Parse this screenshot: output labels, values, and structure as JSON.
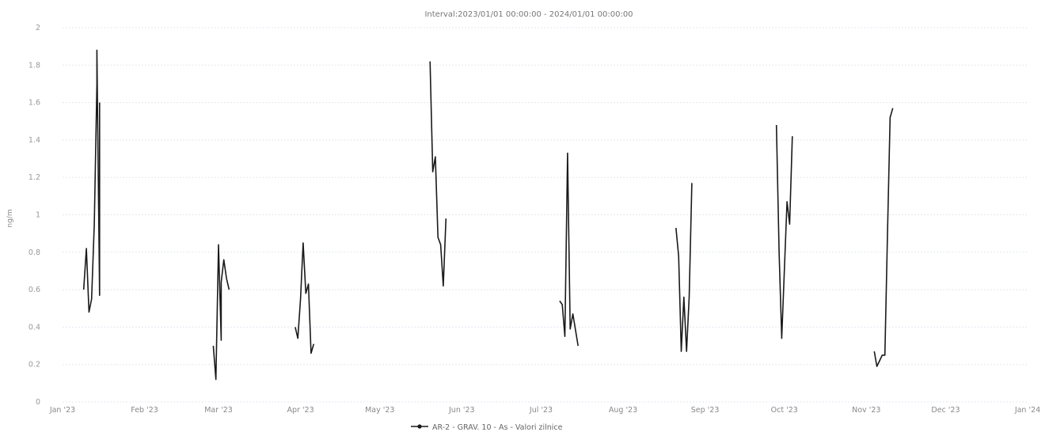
{
  "chart_data": {
    "type": "line",
    "title": "Interval:2023/01/01 00:00:00 - 2024/01/01 00:00:00",
    "ylabel": "ng/m",
    "xlabel": "",
    "ylim": [
      0,
      2
    ],
    "yticks": [
      {
        "value": 0,
        "label": "0"
      },
      {
        "value": 0.2,
        "label": "0.2"
      },
      {
        "value": 0.4,
        "label": "0.4"
      },
      {
        "value": 0.6,
        "label": "0.6"
      },
      {
        "value": 0.8,
        "label": "0.8"
      },
      {
        "value": 1.0,
        "label": "1"
      },
      {
        "value": 1.2,
        "label": "1.2"
      },
      {
        "value": 1.4,
        "label": "1.4"
      },
      {
        "value": 1.6,
        "label": "1.6"
      },
      {
        "value": 1.8,
        "label": "1.8"
      },
      {
        "value": 2.0,
        "label": "2"
      }
    ],
    "xlim": [
      "2023-01-01",
      "2024-01-01"
    ],
    "xticks": [
      {
        "date": "2023-01-01",
        "label": "Jan '23"
      },
      {
        "date": "2023-02-01",
        "label": "Feb '23"
      },
      {
        "date": "2023-03-01",
        "label": "Mar '23"
      },
      {
        "date": "2023-04-01",
        "label": "Apr '23"
      },
      {
        "date": "2023-05-01",
        "label": "May '23"
      },
      {
        "date": "2023-06-01",
        "label": "Jun '23"
      },
      {
        "date": "2023-07-01",
        "label": "Jul '23"
      },
      {
        "date": "2023-08-01",
        "label": "Aug '23"
      },
      {
        "date": "2023-09-01",
        "label": "Sep '23"
      },
      {
        "date": "2023-10-01",
        "label": "Oct '23"
      },
      {
        "date": "2023-11-01",
        "label": "Nov '23"
      },
      {
        "date": "2023-12-01",
        "label": "Dec '23"
      },
      {
        "date": "2024-01-01",
        "label": "Jan '24"
      }
    ],
    "grid": true,
    "legend_position": "bottom-center",
    "series": [
      {
        "name": "AR-2 - GRAV. 10 - As - Valori zilnice",
        "color": "#1a1a1a",
        "segments": [
          [
            {
              "x": "2023-01-09",
              "y": 0.6
            },
            {
              "x": "2023-01-10",
              "y": 0.82
            },
            {
              "x": "2023-01-11",
              "y": 0.48
            },
            {
              "x": "2023-01-12",
              "y": 0.55
            },
            {
              "x": "2023-01-13",
              "y": 0.95
            },
            {
              "x": "2023-01-14",
              "y": 1.7
            },
            {
              "x": "2023-01-14",
              "y": 1.88
            },
            {
              "x": "2023-01-15",
              "y": 0.57
            },
            {
              "x": "2023-01-15",
              "y": 1.6
            }
          ],
          [
            {
              "x": "2023-02-27",
              "y": 0.3
            },
            {
              "x": "2023-02-28",
              "y": 0.12
            },
            {
              "x": "2023-03-01",
              "y": 0.84
            },
            {
              "x": "2023-03-02",
              "y": 0.33
            },
            {
              "x": "2023-03-02",
              "y": 0.64
            },
            {
              "x": "2023-03-03",
              "y": 0.76
            },
            {
              "x": "2023-03-04",
              "y": 0.66
            },
            {
              "x": "2023-03-05",
              "y": 0.6
            }
          ],
          [
            {
              "x": "2023-03-30",
              "y": 0.4
            },
            {
              "x": "2023-03-31",
              "y": 0.34
            },
            {
              "x": "2023-04-01",
              "y": 0.55
            },
            {
              "x": "2023-04-02",
              "y": 0.85
            },
            {
              "x": "2023-04-03",
              "y": 0.58
            },
            {
              "x": "2023-04-04",
              "y": 0.63
            },
            {
              "x": "2023-04-05",
              "y": 0.26
            },
            {
              "x": "2023-04-06",
              "y": 0.31
            }
          ],
          [
            {
              "x": "2023-05-20",
              "y": 1.82
            },
            {
              "x": "2023-05-21",
              "y": 1.23
            },
            {
              "x": "2023-05-22",
              "y": 1.31
            },
            {
              "x": "2023-05-23",
              "y": 0.88
            },
            {
              "x": "2023-05-24",
              "y": 0.84
            },
            {
              "x": "2023-05-25",
              "y": 0.62
            },
            {
              "x": "2023-05-26",
              "y": 0.98
            }
          ],
          [
            {
              "x": "2023-07-08",
              "y": 0.54
            },
            {
              "x": "2023-07-09",
              "y": 0.52
            },
            {
              "x": "2023-07-10",
              "y": 0.35
            },
            {
              "x": "2023-07-11",
              "y": 1.33
            },
            {
              "x": "2023-07-12",
              "y": 0.39
            },
            {
              "x": "2023-07-13",
              "y": 0.47
            },
            {
              "x": "2023-07-15",
              "y": 0.3
            }
          ],
          [
            {
              "x": "2023-08-21",
              "y": 0.93
            },
            {
              "x": "2023-08-22",
              "y": 0.78
            },
            {
              "x": "2023-08-23",
              "y": 0.27
            },
            {
              "x": "2023-08-24",
              "y": 0.56
            },
            {
              "x": "2023-08-25",
              "y": 0.27
            },
            {
              "x": "2023-08-26",
              "y": 0.56
            },
            {
              "x": "2023-08-27",
              "y": 1.17
            }
          ],
          [
            {
              "x": "2023-09-28",
              "y": 1.48
            },
            {
              "x": "2023-09-29",
              "y": 0.8
            },
            {
              "x": "2023-09-30",
              "y": 0.34
            },
            {
              "x": "2023-10-01",
              "y": 0.7
            },
            {
              "x": "2023-10-02",
              "y": 1.07
            },
            {
              "x": "2023-10-03",
              "y": 0.95
            },
            {
              "x": "2023-10-04",
              "y": 1.42
            }
          ],
          [
            {
              "x": "2023-11-04",
              "y": 0.27
            },
            {
              "x": "2023-11-05",
              "y": 0.19
            },
            {
              "x": "2023-11-06",
              "y": 0.22
            },
            {
              "x": "2023-11-07",
              "y": 0.25
            },
            {
              "x": "2023-11-08",
              "y": 0.25
            },
            {
              "x": "2023-11-09",
              "y": 0.9
            },
            {
              "x": "2023-11-10",
              "y": 1.52
            },
            {
              "x": "2023-11-11",
              "y": 1.57
            }
          ]
        ]
      }
    ]
  }
}
